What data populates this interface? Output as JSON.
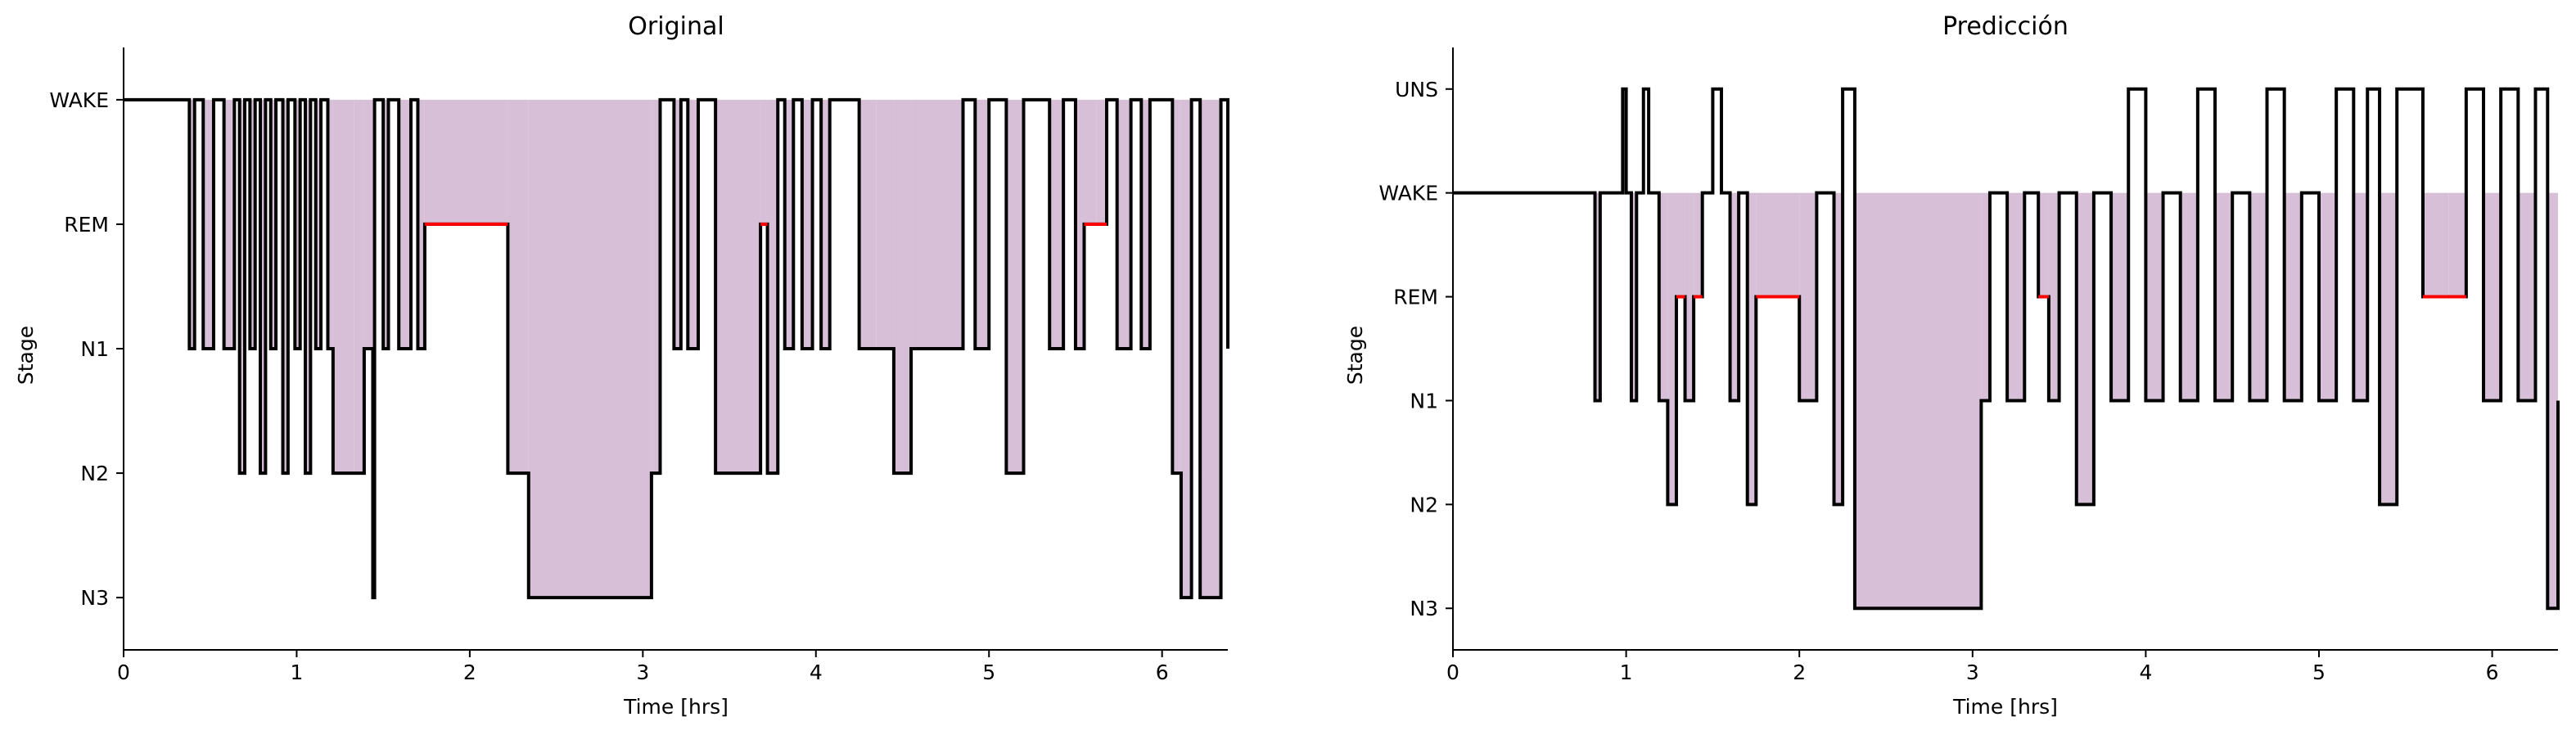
{
  "chart_data": [
    {
      "type": "line",
      "title": "Original",
      "xlabel": "Time [hrs]",
      "ylabel": "Stage",
      "xlim": [
        0,
        6.38
      ],
      "xticks": [
        0,
        1,
        2,
        3,
        4,
        5,
        6
      ],
      "categories": [
        "N3",
        "N2",
        "N1",
        "REM",
        "WAKE"
      ],
      "fill_color": "#d8bfd8",
      "line_color": "#000000",
      "rem_color": "#ff0000",
      "series": [
        {
          "x": [
            0,
            0.38,
            0.41,
            0.46,
            0.52,
            0.58,
            0.64,
            0.67,
            0.7,
            0.73,
            0.76,
            0.79,
            0.82,
            0.85,
            0.88,
            0.92,
            0.95,
            0.99,
            1.02,
            1.05,
            1.08,
            1.11,
            1.14,
            1.18,
            1.21,
            1.33,
            1.39,
            1.44,
            1.45,
            1.5,
            1.53,
            1.59,
            1.66,
            1.7,
            1.74,
            2.22,
            2.34,
            3.05,
            3.1,
            3.18,
            3.22,
            3.26,
            3.32,
            3.42,
            3.68,
            3.72,
            3.78,
            3.82,
            3.87,
            3.92,
            3.98,
            4.03,
            4.08,
            4.25,
            4.35,
            4.45,
            4.55,
            4.85,
            4.92,
            5.0,
            5.1,
            5.2,
            5.35,
            5.43,
            5.5,
            5.55,
            5.62,
            5.68,
            5.74,
            5.82,
            5.88,
            5.93,
            6.06,
            6.11,
            6.17,
            6.22,
            6.34,
            6.38
          ],
          "y": [
            4,
            2,
            4,
            2,
            4,
            2,
            4,
            1,
            4,
            2,
            4,
            1,
            4,
            2,
            4,
            1,
            4,
            2,
            4,
            1,
            4,
            2,
            4,
            2,
            1,
            1,
            2,
            0,
            4,
            2,
            4,
            2,
            4,
            2,
            3,
            1,
            0,
            1,
            4,
            2,
            4,
            2,
            4,
            1,
            3,
            1,
            4,
            2,
            4,
            2,
            4,
            2,
            4,
            2,
            2,
            1,
            2,
            4,
            2,
            4,
            1,
            4,
            2,
            4,
            2,
            3,
            3,
            4,
            2,
            4,
            2,
            4,
            1,
            0,
            4,
            0,
            4,
            2
          ]
        }
      ]
    },
    {
      "type": "line",
      "title": "Predicción",
      "xlabel": "Time [hrs]",
      "ylabel": "Stage",
      "xlim": [
        0,
        6.38
      ],
      "xticks": [
        0,
        1,
        2,
        3,
        4,
        5,
        6
      ],
      "categories": [
        "N3",
        "N2",
        "N1",
        "REM",
        "WAKE",
        "UNS"
      ],
      "fill_color": "#d8bfd8",
      "line_color": "#000000",
      "rem_color": "#ff0000",
      "series": [
        {
          "x": [
            0,
            0.82,
            0.85,
            0.98,
            1.0,
            1.03,
            1.06,
            1.1,
            1.13,
            1.19,
            1.24,
            1.29,
            1.34,
            1.39,
            1.44,
            1.5,
            1.55,
            1.6,
            1.65,
            1.7,
            1.75,
            2.0,
            2.1,
            2.2,
            2.25,
            2.32,
            3.05,
            3.1,
            3.2,
            3.3,
            3.38,
            3.44,
            3.5,
            3.6,
            3.7,
            3.8,
            3.9,
            4.0,
            4.1,
            4.2,
            4.3,
            4.4,
            4.5,
            4.6,
            4.7,
            4.8,
            4.9,
            5.0,
            5.1,
            5.2,
            5.28,
            5.35,
            5.45,
            5.6,
            5.75,
            5.85,
            5.95,
            6.05,
            6.15,
            6.25,
            6.32,
            6.38
          ],
          "y": [
            4,
            2,
            4,
            5,
            4,
            2,
            4,
            5,
            4,
            2,
            1,
            3,
            2,
            3,
            4,
            5,
            4,
            2,
            4,
            1,
            3,
            2,
            4,
            1,
            5,
            0,
            2,
            4,
            2,
            4,
            3,
            2,
            4,
            1,
            4,
            2,
            5,
            2,
            4,
            2,
            5,
            2,
            4,
            2,
            5,
            2,
            4,
            2,
            5,
            2,
            5,
            1,
            5,
            3,
            3,
            5,
            2,
            5,
            2,
            5,
            0,
            2
          ]
        }
      ]
    }
  ]
}
